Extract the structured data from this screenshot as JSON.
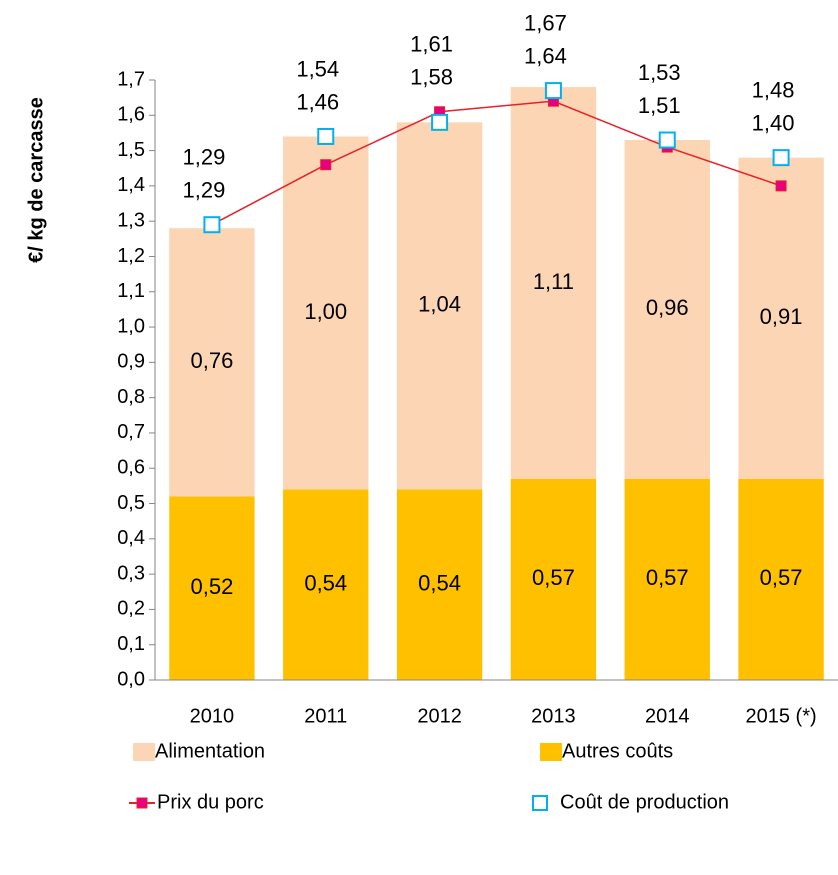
{
  "chart_data": {
    "type": "bar",
    "stacked": true,
    "y_label": "€/ kg de carcasse",
    "categories": [
      "2010",
      "2011",
      "2012",
      "2013",
      "2014",
      "2015 (*)"
    ],
    "series": [
      {
        "name": "Alimentation",
        "type": "bar",
        "color": "#fcd5b4",
        "values": [
          0.76,
          1.0,
          1.04,
          1.11,
          0.96,
          0.91
        ],
        "value_labels": [
          "0,76",
          "1,00",
          "1,04",
          "1,11",
          "0,96",
          "0,91"
        ]
      },
      {
        "name": "Autres coûts",
        "type": "bar",
        "color": "#ffc000",
        "values": [
          0.52,
          0.54,
          0.54,
          0.57,
          0.57,
          0.57
        ],
        "value_labels": [
          "0,52",
          "0,54",
          "0,54",
          "0,57",
          "0,57",
          "0,57"
        ]
      },
      {
        "name": "Prix du porc",
        "type": "line",
        "color": "#e8202a",
        "marker_color": "#e6007e",
        "values": [
          1.29,
          1.46,
          1.61,
          1.64,
          1.51,
          1.4
        ],
        "value_labels": [
          "1,29",
          "1,46",
          "1,61",
          "1,64",
          "1,51",
          "1,40"
        ]
      },
      {
        "name": "Coût de production",
        "type": "marker",
        "color": "#00b0f0",
        "label_color": "#4f81bd",
        "values": [
          1.29,
          1.54,
          1.58,
          1.67,
          1.53,
          1.48
        ],
        "value_labels": [
          "1,29",
          "1,54",
          "1,58",
          "1,67",
          "1,53",
          "1,48"
        ]
      }
    ],
    "ylim": [
      0,
      1.7
    ],
    "yticks": [
      {
        "value": 0,
        "label": "0,0"
      },
      {
        "value": 0.1,
        "label": "0,1"
      },
      {
        "value": 0.2,
        "label": "0,2"
      },
      {
        "value": 0.3,
        "label": "0,3"
      },
      {
        "value": 0.4,
        "label": "0,4"
      },
      {
        "value": 0.5,
        "label": "0,5"
      },
      {
        "value": 0.6,
        "label": "0,6"
      },
      {
        "value": 0.7,
        "label": "0,7"
      },
      {
        "value": 0.8,
        "label": "0,8"
      },
      {
        "value": 0.9,
        "label": "0,9"
      },
      {
        "value": 1,
        "label": "1,0"
      },
      {
        "value": 1.1,
        "label": "1,1"
      },
      {
        "value": 1.2,
        "label": "1,2"
      },
      {
        "value": 1.3,
        "label": "1,3"
      },
      {
        "value": 1.4,
        "label": "1,4"
      },
      {
        "value": 1.5,
        "label": "1,5"
      },
      {
        "value": 1.6,
        "label": "1,6"
      },
      {
        "value": 1.7,
        "label": "1,7"
      }
    ],
    "grid": false,
    "legend": "bottom"
  }
}
